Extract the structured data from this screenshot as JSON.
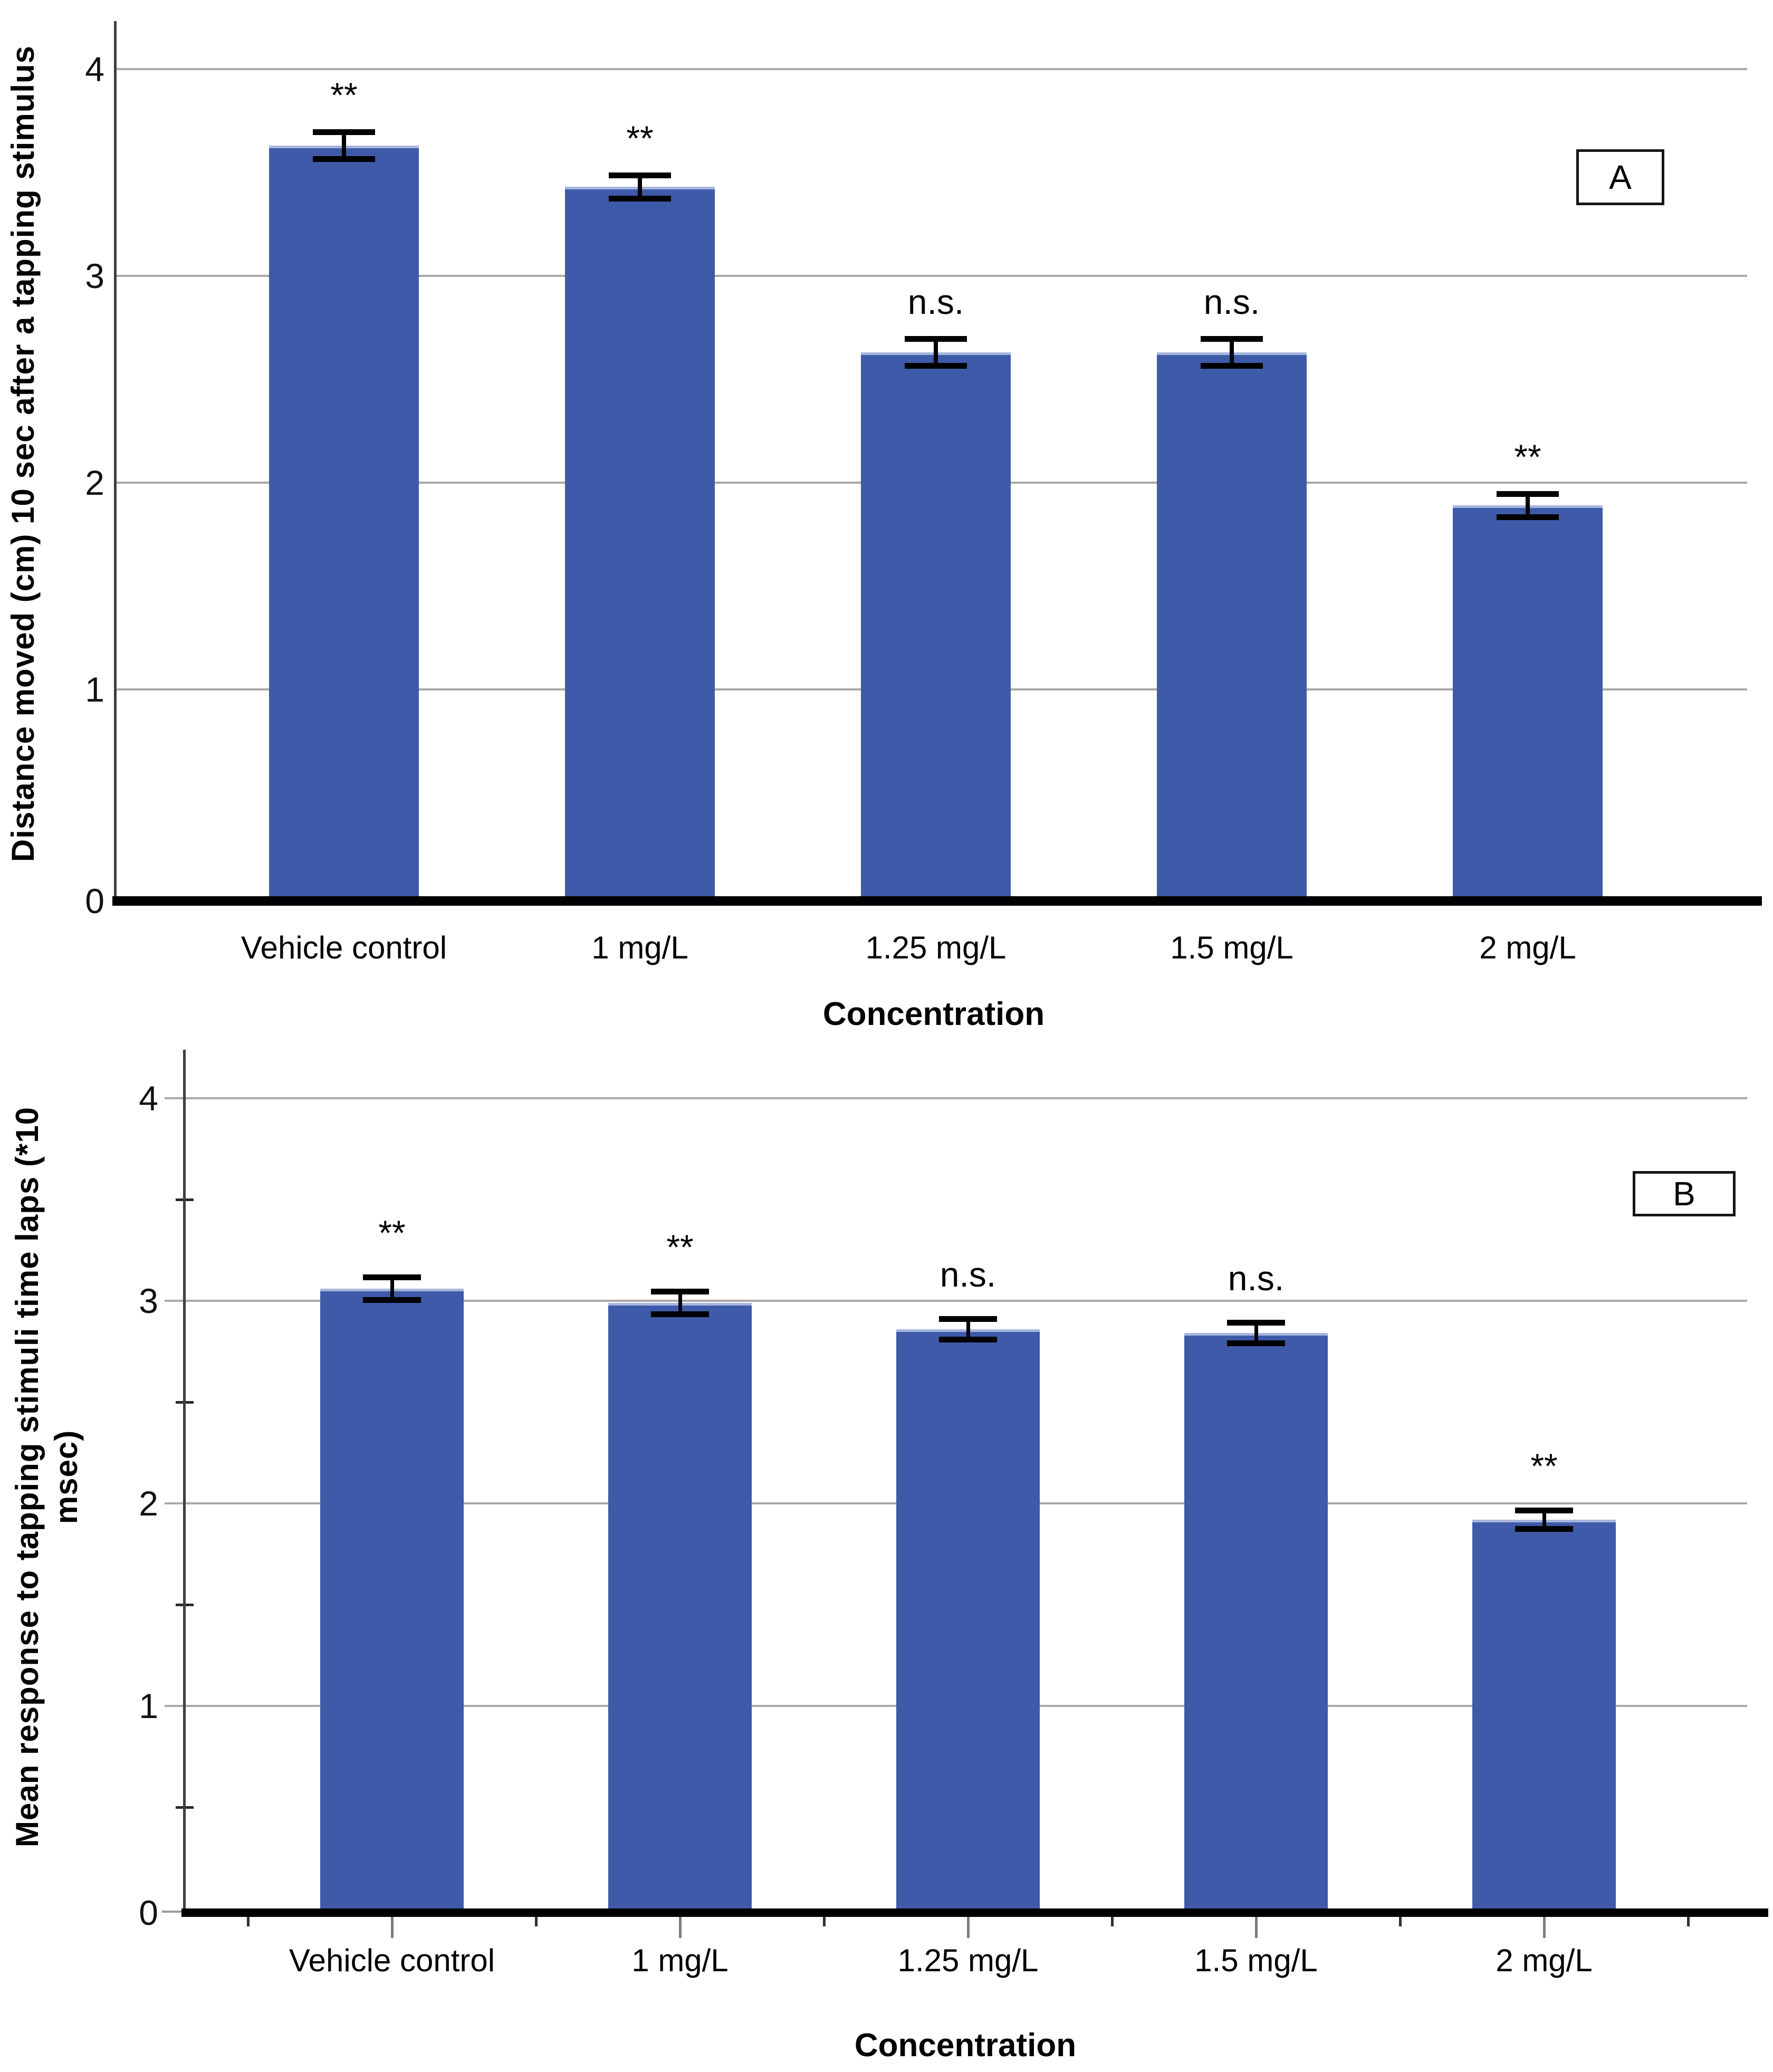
{
  "page": {
    "background": "#FFFFFF"
  },
  "chart_data": [
    {
      "type": "bar",
      "panel_label": "A",
      "ylabel": "Distance moved (cm) 10 sec after a tapping stimulus",
      "xlabel": "Concentration",
      "categories": [
        "Vehicle control",
        "1 mg/L",
        "1.25 mg/L",
        "1.5 mg/L",
        "2 mg/L"
      ],
      "values": [
        3.63,
        3.43,
        2.63,
        2.63,
        1.89
      ],
      "errors": [
        0.08,
        0.07,
        0.08,
        0.08,
        0.07
      ],
      "annotations": [
        "**",
        "**",
        "n.s.",
        "n.s.",
        "**"
      ],
      "yticks": [
        0,
        1,
        2,
        3,
        4
      ],
      "ylim": [
        0,
        4.2
      ],
      "grid": true,
      "legend_position": "none",
      "bar_color": "#3E5AA9",
      "bar_top_edge_color": "#A6B6DD",
      "error_color": "#000000",
      "grid_color": "#A9A9A9",
      "axis_color": "#3F3F3F",
      "baseline_color": "#000000"
    },
    {
      "type": "bar",
      "panel_label": "B",
      "ylabel": "Mean response to tapping stimuli time laps (*10\nmsec)",
      "xlabel": "Concentration",
      "categories": [
        "Vehicle control",
        "1 mg/L",
        "1.25 mg/L",
        "1.5 mg/L",
        "2 mg/L"
      ],
      "values": [
        3.06,
        2.99,
        2.86,
        2.84,
        1.92
      ],
      "errors": [
        0.07,
        0.07,
        0.065,
        0.065,
        0.06
      ],
      "annotations": [
        "**",
        "**",
        "n.s.",
        "n.s.",
        "**"
      ],
      "yticks": [
        0,
        1,
        2,
        3,
        4
      ],
      "y_minor_ticks": [
        0.5,
        1.5,
        2.5,
        3.5
      ],
      "ylim": [
        0,
        4.2
      ],
      "grid": true,
      "legend_position": "none",
      "has_x_axis_ticks": true,
      "bar_color": "#3E5AA9",
      "bar_top_edge_color": "#A6B6DD",
      "error_color": "#000000",
      "grid_color": "#A9A9A9",
      "axis_color": "#3F3F3F",
      "baseline_color": "#000000"
    }
  ]
}
